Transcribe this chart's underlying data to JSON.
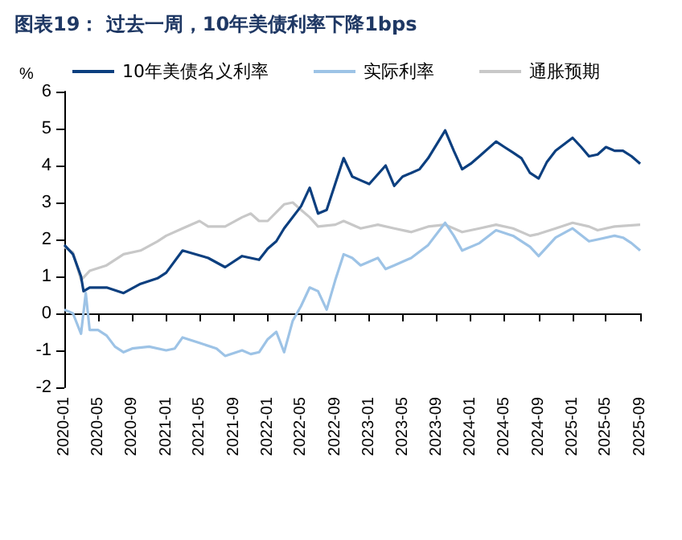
{
  "chart_data": {
    "type": "line",
    "title": "图表19： 过去一周，10年美债利率下降1bps",
    "ylabel": "%",
    "xlim": [
      "2020-01",
      "2025-09"
    ],
    "xticks": [
      "2020-01",
      "2020-05",
      "2020-09",
      "2021-01",
      "2021-05",
      "2021-09",
      "2022-01",
      "2022-05",
      "2022-09",
      "2023-01",
      "2023-05",
      "2023-09",
      "2024-01",
      "2024-05",
      "2024-09",
      "2025-01",
      "2025-05",
      "2025-09"
    ],
    "ylim": [
      -2,
      6
    ],
    "yticks": [
      -2,
      -1,
      0,
      1,
      2,
      3,
      4,
      5,
      6
    ],
    "legend": "top",
    "marker": "none",
    "line_style": "solid",
    "series": [
      {
        "name": "10年美债名义利率",
        "color": "#0c3f7f",
        "x": [
          "2020-01",
          "2020-02",
          "2020-03",
          "2020-03-10",
          "2020-04",
          "2020-06",
          "2020-08",
          "2020-10",
          "2020-12",
          "2021-01",
          "2021-03",
          "2021-06",
          "2021-08",
          "2021-10",
          "2021-12",
          "2022-01",
          "2022-02",
          "2022-03",
          "2022-05",
          "2022-06",
          "2022-07",
          "2022-08",
          "2022-10",
          "2022-11",
          "2022-12",
          "2023-01",
          "2023-03",
          "2023-04",
          "2023-05",
          "2023-06",
          "2023-07",
          "2023-08",
          "2023-10",
          "2023-11",
          "2023-12",
          "2024-01",
          "2024-02",
          "2024-04",
          "2024-05",
          "2024-06",
          "2024-07",
          "2024-08",
          "2024-09",
          "2024-10",
          "2024-11",
          "2025-01",
          "2025-02",
          "2025-03",
          "2025-04",
          "2025-05",
          "2025-06",
          "2025-07",
          "2025-08",
          "2025-09"
        ],
        "values": [
          1.85,
          1.6,
          1.0,
          0.6,
          0.7,
          0.7,
          0.55,
          0.8,
          0.95,
          1.1,
          1.7,
          1.5,
          1.25,
          1.55,
          1.45,
          1.75,
          1.95,
          2.3,
          2.9,
          3.4,
          2.7,
          2.8,
          4.2,
          3.7,
          3.6,
          3.5,
          4.0,
          3.45,
          3.7,
          3.8,
          3.9,
          4.2,
          4.95,
          4.4,
          3.9,
          4.05,
          4.25,
          4.65,
          4.5,
          4.35,
          4.2,
          3.8,
          3.65,
          4.1,
          4.4,
          4.75,
          4.5,
          4.25,
          4.3,
          4.5,
          4.4,
          4.4,
          4.25,
          4.05
        ]
      },
      {
        "name": "实际利率",
        "color": "#9dc3e6",
        "x": [
          "2020-01",
          "2020-02",
          "2020-03",
          "2020-03-18",
          "2020-04",
          "2020-05",
          "2020-06",
          "2020-07",
          "2020-08",
          "2020-09",
          "2020-11",
          "2021-01",
          "2021-02",
          "2021-03",
          "2021-05",
          "2021-07",
          "2021-08",
          "2021-10",
          "2021-11",
          "2021-12",
          "2022-01",
          "2022-02",
          "2022-03",
          "2022-04",
          "2022-05",
          "2022-06",
          "2022-07",
          "2022-08",
          "2022-09",
          "2022-10",
          "2022-11",
          "2022-12",
          "2023-02",
          "2023-03",
          "2023-04",
          "2023-06",
          "2023-08",
          "2023-10",
          "2023-11",
          "2023-12",
          "2024-02",
          "2024-04",
          "2024-06",
          "2024-08",
          "2024-09",
          "2024-11",
          "2025-01",
          "2025-03",
          "2025-04",
          "2025-06",
          "2025-07",
          "2025-08",
          "2025-09"
        ],
        "values": [
          0.1,
          0.0,
          -0.55,
          0.55,
          -0.45,
          -0.45,
          -0.6,
          -0.9,
          -1.05,
          -0.95,
          -0.9,
          -1.0,
          -0.95,
          -0.65,
          -0.8,
          -0.95,
          -1.15,
          -1.0,
          -1.1,
          -1.05,
          -0.7,
          -0.5,
          -1.05,
          -0.2,
          0.2,
          0.7,
          0.6,
          0.1,
          0.9,
          1.6,
          1.5,
          1.3,
          1.5,
          1.2,
          1.3,
          1.5,
          1.85,
          2.45,
          2.1,
          1.7,
          1.9,
          2.25,
          2.1,
          1.8,
          1.55,
          2.05,
          2.3,
          1.95,
          2.0,
          2.1,
          2.05,
          1.9,
          1.7
        ]
      },
      {
        "name": "通胀预期",
        "color": "#c8c8c8",
        "x": [
          "2020-01",
          "2020-02",
          "2020-03",
          "2020-04",
          "2020-06",
          "2020-08",
          "2020-10",
          "2020-12",
          "2021-01",
          "2021-03",
          "2021-05",
          "2021-06",
          "2021-08",
          "2021-10",
          "2021-11",
          "2021-12",
          "2022-01",
          "2022-03",
          "2022-04",
          "2022-05",
          "2022-06",
          "2022-07",
          "2022-09",
          "2022-10",
          "2022-12",
          "2023-02",
          "2023-04",
          "2023-06",
          "2023-08",
          "2023-10",
          "2023-12",
          "2024-02",
          "2024-04",
          "2024-06",
          "2024-08",
          "2024-09",
          "2024-11",
          "2025-01",
          "2025-03",
          "2025-04",
          "2025-06",
          "2025-09"
        ],
        "values": [
          1.8,
          1.65,
          0.9,
          1.15,
          1.3,
          1.6,
          1.7,
          1.95,
          2.1,
          2.3,
          2.5,
          2.35,
          2.35,
          2.6,
          2.7,
          2.5,
          2.5,
          2.95,
          3.0,
          2.8,
          2.6,
          2.35,
          2.4,
          2.5,
          2.3,
          2.4,
          2.3,
          2.2,
          2.35,
          2.4,
          2.2,
          2.3,
          2.4,
          2.3,
          2.1,
          2.15,
          2.3,
          2.45,
          2.35,
          2.25,
          2.35,
          2.4
        ]
      }
    ]
  }
}
